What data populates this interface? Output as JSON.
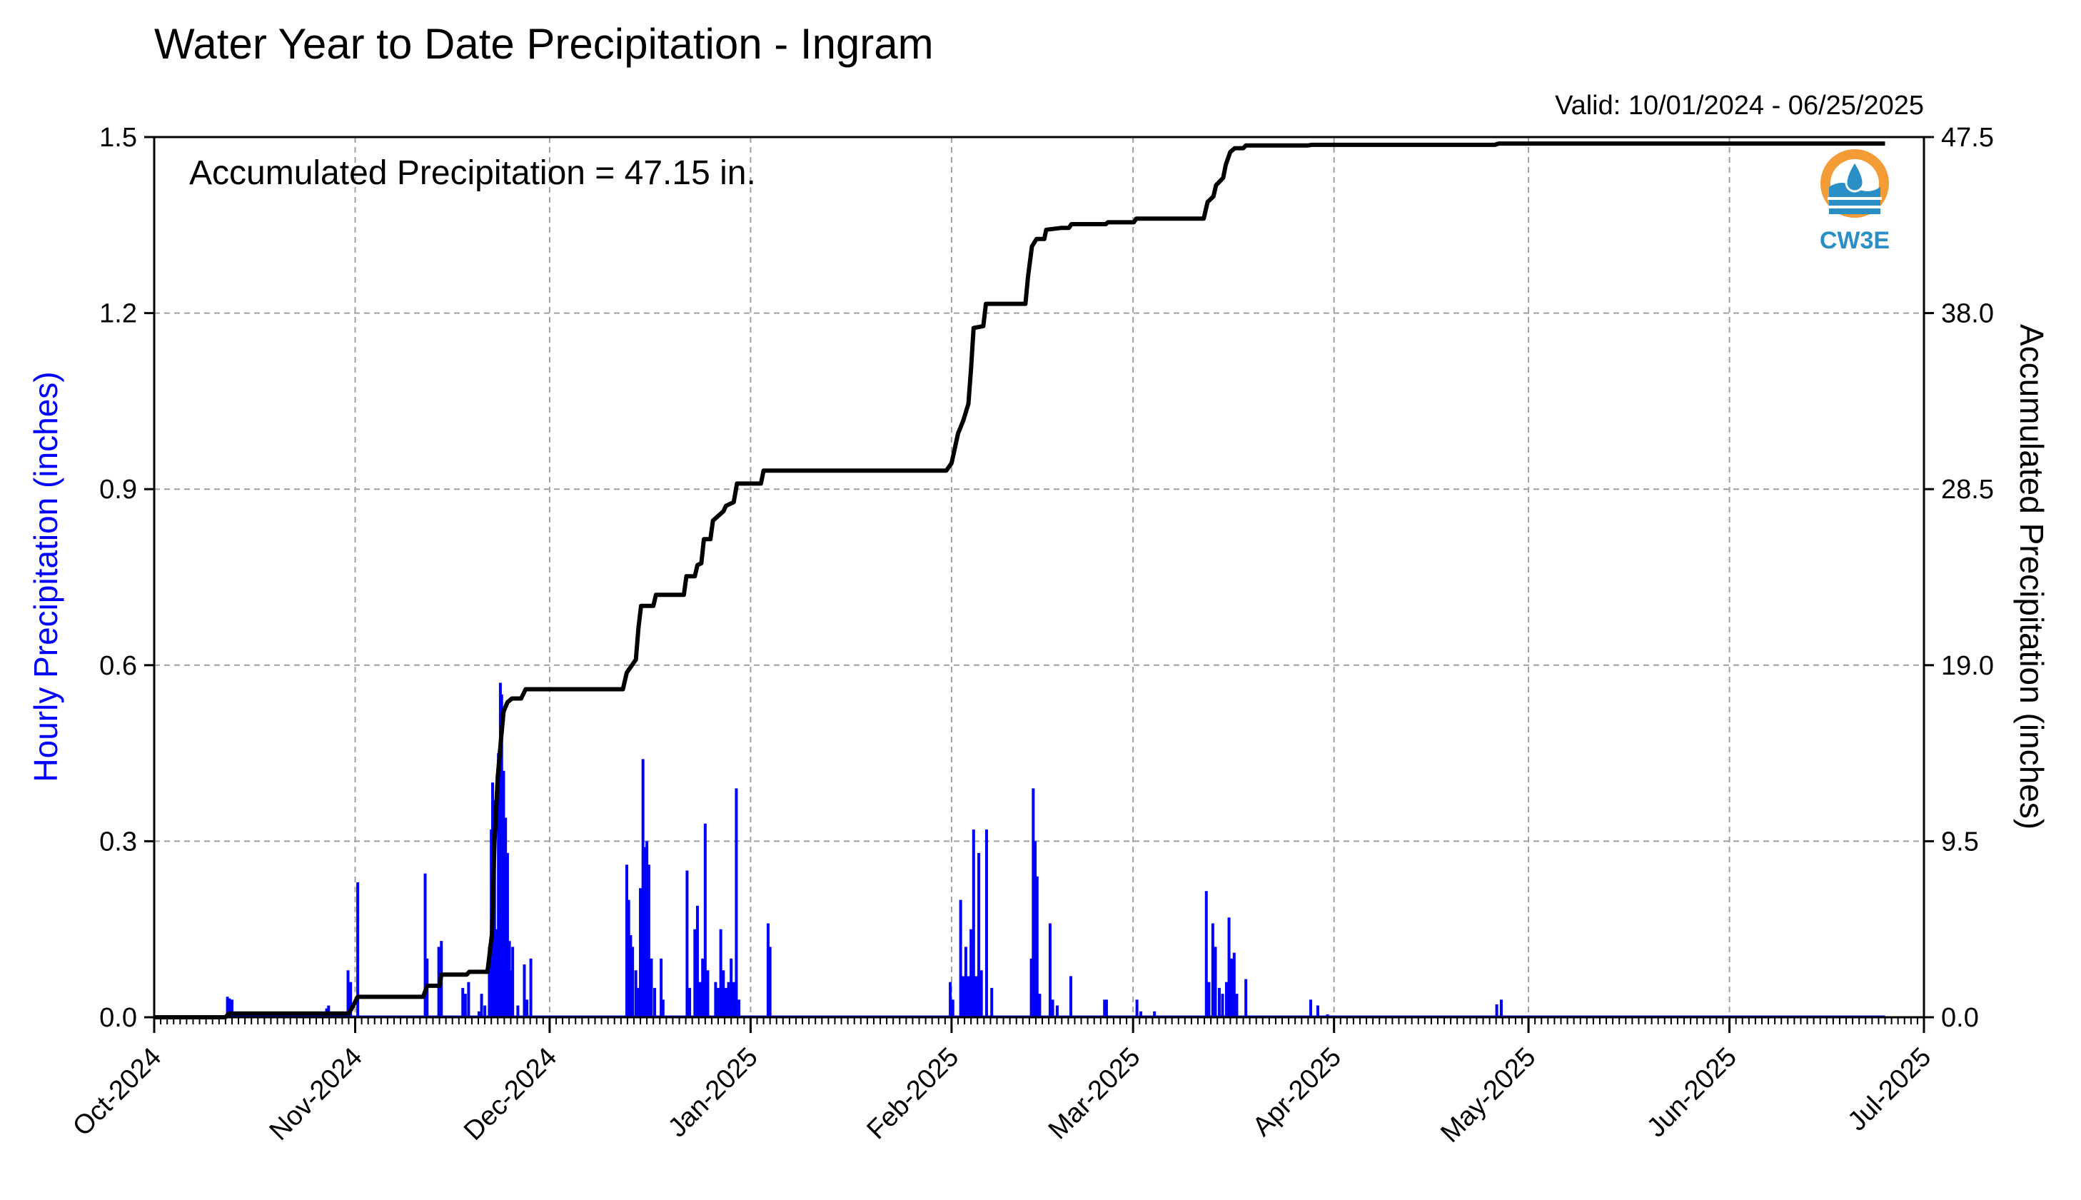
{
  "chart_data": {
    "type": "bar",
    "title": "Water Year to Date Precipitation - Ingram",
    "valid_label": "Valid: 10/01/2024 - 06/25/2025",
    "annotation": "Accumulated Precipitation = 47.15 in.",
    "ylabel_left": "Hourly Precipitation (inches)",
    "ylabel_right": "Accumulated Precipitation (inches)",
    "ylim_left": [
      0,
      1.5
    ],
    "ylim_right": [
      0,
      47.5
    ],
    "yticks_left": [
      "0.0",
      "0.3",
      "0.6",
      "0.9",
      "1.2",
      "1.5"
    ],
    "yticks_right": [
      "0.0",
      "9.5",
      "19.0",
      "28.5",
      "38.0",
      "47.5"
    ],
    "xlim_days": [
      0,
      273
    ],
    "xticks": [
      {
        "label": "Oct-2024",
        "day": 0
      },
      {
        "label": "Nov-2024",
        "day": 31
      },
      {
        "label": "Dec-2024",
        "day": 61
      },
      {
        "label": "Jan-2025",
        "day": 92
      },
      {
        "label": "Feb-2025",
        "day": 123
      },
      {
        "label": "Mar-2025",
        "day": 151
      },
      {
        "label": "Apr-2025",
        "day": 182
      },
      {
        "label": "May-2025",
        "day": 212
      },
      {
        "label": "Jun-2025",
        "day": 243
      },
      {
        "label": "Jul-2025",
        "day": 273
      }
    ],
    "grid": true,
    "colors": {
      "hourly": "#0000ff",
      "accumulated": "#000000",
      "left_axis_label": "#0000ff",
      "grid": "#a0a0a0",
      "logo_orange": "#f39c35",
      "logo_blue": "#2a8fc4"
    },
    "series": [
      {
        "name": "Hourly Precipitation",
        "axis": "left",
        "kind": "bar",
        "points": [
          [
            11.3,
            0.035
          ],
          [
            11.6,
            0.032
          ],
          [
            12.0,
            0.03
          ],
          [
            26.6,
            0.015
          ],
          [
            26.9,
            0.02
          ],
          [
            29.9,
            0.08
          ],
          [
            30.3,
            0.06
          ],
          [
            31.4,
            0.23
          ],
          [
            41.8,
            0.245
          ],
          [
            42.1,
            0.1
          ],
          [
            43.9,
            0.12
          ],
          [
            44.3,
            0.13
          ],
          [
            47.6,
            0.05
          ],
          [
            48.0,
            0.04
          ],
          [
            48.5,
            0.06
          ],
          [
            50.1,
            0.01
          ],
          [
            50.5,
            0.04
          ],
          [
            51.0,
            0.02
          ],
          [
            51.7,
            0.12
          ],
          [
            52.0,
            0.32
          ],
          [
            52.2,
            0.4
          ],
          [
            52.5,
            0.37
          ],
          [
            52.8,
            0.15
          ],
          [
            53.1,
            0.45
          ],
          [
            53.4,
            0.57
          ],
          [
            53.6,
            0.55
          ],
          [
            53.9,
            0.42
          ],
          [
            54.2,
            0.34
          ],
          [
            54.5,
            0.28
          ],
          [
            54.8,
            0.13
          ],
          [
            55.1,
            0.08
          ],
          [
            55.3,
            0.12
          ],
          [
            56.1,
            0.02
          ],
          [
            57.1,
            0.09
          ],
          [
            57.5,
            0.03
          ],
          [
            58.1,
            0.1
          ],
          [
            72.9,
            0.26
          ],
          [
            73.2,
            0.2
          ],
          [
            73.5,
            0.14
          ],
          [
            73.8,
            0.12
          ],
          [
            74.3,
            0.08
          ],
          [
            74.7,
            0.05
          ],
          [
            75.0,
            0.22
          ],
          [
            75.4,
            0.44
          ],
          [
            75.7,
            0.29
          ],
          [
            76.0,
            0.3
          ],
          [
            76.3,
            0.26
          ],
          [
            76.7,
            0.1
          ],
          [
            77.2,
            0.05
          ],
          [
            78.2,
            0.1
          ],
          [
            78.5,
            0.03
          ],
          [
            82.2,
            0.25
          ],
          [
            82.6,
            0.05
          ],
          [
            83.4,
            0.15
          ],
          [
            83.8,
            0.19
          ],
          [
            84.2,
            0.06
          ],
          [
            84.6,
            0.1
          ],
          [
            85.0,
            0.33
          ],
          [
            85.4,
            0.08
          ],
          [
            86.6,
            0.06
          ],
          [
            87.0,
            0.05
          ],
          [
            87.4,
            0.15
          ],
          [
            87.8,
            0.08
          ],
          [
            88.2,
            0.05
          ],
          [
            88.6,
            0.06
          ],
          [
            89.0,
            0.1
          ],
          [
            89.4,
            0.06
          ],
          [
            89.8,
            0.39
          ],
          [
            90.2,
            0.03
          ],
          [
            94.7,
            0.16
          ],
          [
            95.0,
            0.12
          ],
          [
            122.8,
            0.06
          ],
          [
            123.2,
            0.03
          ],
          [
            124.4,
            0.2
          ],
          [
            124.8,
            0.07
          ],
          [
            125.2,
            0.12
          ],
          [
            125.6,
            0.07
          ],
          [
            126.0,
            0.15
          ],
          [
            126.4,
            0.32
          ],
          [
            126.8,
            0.07
          ],
          [
            127.2,
            0.28
          ],
          [
            127.6,
            0.08
          ],
          [
            128.4,
            0.32
          ],
          [
            129.2,
            0.05
          ],
          [
            135.3,
            0.1
          ],
          [
            135.6,
            0.39
          ],
          [
            135.9,
            0.3
          ],
          [
            136.2,
            0.24
          ],
          [
            136.6,
            0.04
          ],
          [
            138.2,
            0.16
          ],
          [
            138.6,
            0.03
          ],
          [
            139.3,
            0.02
          ],
          [
            141.4,
            0.07
          ],
          [
            146.6,
            0.03
          ],
          [
            146.9,
            0.03
          ],
          [
            151.6,
            0.03
          ],
          [
            152.2,
            0.01
          ],
          [
            154.3,
            0.01
          ],
          [
            162.3,
            0.215
          ],
          [
            162.7,
            0.06
          ],
          [
            163.3,
            0.16
          ],
          [
            163.7,
            0.12
          ],
          [
            164.3,
            0.05
          ],
          [
            164.8,
            0.04
          ],
          [
            165.4,
            0.06
          ],
          [
            165.8,
            0.17
          ],
          [
            166.2,
            0.1
          ],
          [
            166.6,
            0.11
          ],
          [
            167.0,
            0.04
          ],
          [
            168.4,
            0.065
          ],
          [
            178.4,
            0.03
          ],
          [
            179.5,
            0.02
          ],
          [
            181.0,
            0.005
          ],
          [
            207.1,
            0.022
          ],
          [
            207.8,
            0.03
          ]
        ]
      },
      {
        "name": "Accumulated Precipitation",
        "axis": "right",
        "kind": "line",
        "points": [
          [
            0,
            0
          ],
          [
            11,
            0
          ],
          [
            11.5,
            0.2
          ],
          [
            30,
            0.2
          ],
          [
            30.5,
            0.5
          ],
          [
            31.4,
            1.1
          ],
          [
            41.5,
            1.1
          ],
          [
            42.1,
            1.7
          ],
          [
            44.0,
            1.7
          ],
          [
            44.3,
            2.3
          ],
          [
            48.2,
            2.3
          ],
          [
            48.6,
            2.45
          ],
          [
            51.4,
            2.45
          ],
          [
            51.6,
            3.0
          ],
          [
            52.1,
            4.5
          ],
          [
            52.5,
            9.5
          ],
          [
            53.0,
            13.0
          ],
          [
            53.5,
            15.0
          ],
          [
            53.9,
            16.5
          ],
          [
            54.5,
            17.0
          ],
          [
            55.2,
            17.2
          ],
          [
            56.6,
            17.2
          ],
          [
            57.3,
            17.7
          ],
          [
            72.3,
            17.7
          ],
          [
            72.9,
            18.6
          ],
          [
            74.3,
            19.3
          ],
          [
            74.7,
            21.0
          ],
          [
            75.1,
            22.2
          ],
          [
            77.0,
            22.2
          ],
          [
            77.4,
            22.8
          ],
          [
            81.7,
            22.8
          ],
          [
            82.1,
            23.8
          ],
          [
            83.4,
            23.8
          ],
          [
            83.8,
            24.4
          ],
          [
            84.4,
            24.5
          ],
          [
            84.8,
            25.8
          ],
          [
            85.8,
            25.8
          ],
          [
            86.2,
            26.8
          ],
          [
            87.8,
            27.3
          ],
          [
            88.2,
            27.6
          ],
          [
            89.4,
            27.8
          ],
          [
            89.9,
            28.8
          ],
          [
            93.6,
            28.8
          ],
          [
            94.0,
            29.5
          ],
          [
            122.2,
            29.5
          ],
          [
            123.0,
            29.9
          ],
          [
            124.0,
            31.5
          ],
          [
            124.8,
            32.2
          ],
          [
            125.6,
            33.1
          ],
          [
            126.0,
            35.0
          ],
          [
            126.4,
            37.2
          ],
          [
            127.9,
            37.3
          ],
          [
            128.3,
            38.5
          ],
          [
            134.4,
            38.5
          ],
          [
            134.8,
            40.0
          ],
          [
            135.4,
            41.6
          ],
          [
            136.1,
            42.0
          ],
          [
            137.3,
            42.0
          ],
          [
            137.6,
            42.5
          ],
          [
            140.0,
            42.6
          ],
          [
            141.1,
            42.6
          ],
          [
            141.5,
            42.8
          ],
          [
            146.8,
            42.8
          ],
          [
            147.1,
            42.9
          ],
          [
            151.1,
            42.9
          ],
          [
            151.5,
            43.1
          ],
          [
            161.9,
            43.1
          ],
          [
            162.5,
            44.0
          ],
          [
            163.4,
            44.3
          ],
          [
            163.8,
            44.9
          ],
          [
            164.9,
            45.3
          ],
          [
            165.3,
            46.0
          ],
          [
            166.0,
            46.7
          ],
          [
            166.7,
            46.9
          ],
          [
            168.0,
            46.9
          ],
          [
            168.4,
            47.05
          ],
          [
            178.0,
            47.05
          ],
          [
            178.6,
            47.08
          ],
          [
            206.8,
            47.08
          ],
          [
            207.4,
            47.15
          ],
          [
            267,
            47.15
          ]
        ]
      }
    ],
    "logo": {
      "text": "CW3E"
    }
  }
}
